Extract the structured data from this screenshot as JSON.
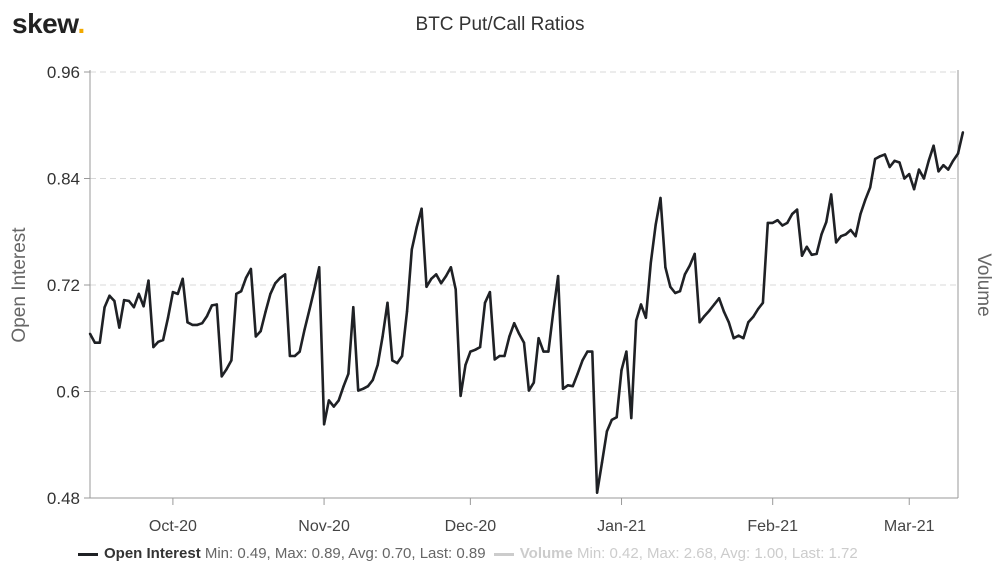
{
  "header": {
    "logo_text": "skew",
    "logo_dot": ".",
    "title": "BTC Put/Call Ratios"
  },
  "colors": {
    "line": "#1f2125",
    "grid": "#d8d8d8",
    "axis": "#999999",
    "logo_dot": "#f2a900",
    "inactive": "#cccccc"
  },
  "legend": [
    {
      "name": "Open Interest",
      "stats": "Min: 0.49, Max: 0.89, Avg: 0.70, Last: 0.89",
      "active": true
    },
    {
      "name": "Volume",
      "stats": "Min: 0.42, Max: 2.68, Avg: 1.00, Last: 1.72",
      "active": false
    }
  ],
  "chart_data": {
    "type": "line",
    "title": "BTC Put/Call Ratios",
    "ylabel": "Open Interest",
    "y2label": "Volume",
    "ylim": [
      0.48,
      0.96
    ],
    "yticks": [
      "0.48",
      "0.6",
      "0.72",
      "0.84",
      "0.96"
    ],
    "xrange": [
      "2020-09-14",
      "2021-03-11"
    ],
    "xticks": [
      {
        "date": "2020-10-01",
        "label": "Oct-20"
      },
      {
        "date": "2020-11-01",
        "label": "Nov-20"
      },
      {
        "date": "2020-12-01",
        "label": "Dec-20"
      },
      {
        "date": "2021-01-01",
        "label": "Jan-21"
      },
      {
        "date": "2021-02-01",
        "label": "Feb-21"
      },
      {
        "date": "2021-03-01",
        "label": "Mar-21"
      }
    ],
    "grid": true,
    "legend_position": "bottom-left",
    "series": [
      {
        "name": "Open Interest",
        "points": [
          [
            "2020-09-14",
            0.665
          ],
          [
            "2020-09-15",
            0.655
          ],
          [
            "2020-09-16",
            0.655
          ],
          [
            "2020-09-17",
            0.695
          ],
          [
            "2020-09-18",
            0.708
          ],
          [
            "2020-09-19",
            0.702
          ],
          [
            "2020-09-20",
            0.672
          ],
          [
            "2020-09-21",
            0.703
          ],
          [
            "2020-09-22",
            0.702
          ],
          [
            "2020-09-23",
            0.695
          ],
          [
            "2020-09-24",
            0.71
          ],
          [
            "2020-09-25",
            0.696
          ],
          [
            "2020-09-26",
            0.725
          ],
          [
            "2020-09-27",
            0.65
          ],
          [
            "2020-09-28",
            0.656
          ],
          [
            "2020-09-29",
            0.658
          ],
          [
            "2020-09-30",
            0.683
          ],
          [
            "2020-10-01",
            0.712
          ],
          [
            "2020-10-02",
            0.71
          ],
          [
            "2020-10-03",
            0.727
          ],
          [
            "2020-10-04",
            0.678
          ],
          [
            "2020-10-05",
            0.675
          ],
          [
            "2020-10-06",
            0.675
          ],
          [
            "2020-10-07",
            0.677
          ],
          [
            "2020-10-08",
            0.685
          ],
          [
            "2020-10-09",
            0.697
          ],
          [
            "2020-10-10",
            0.698
          ],
          [
            "2020-10-11",
            0.617
          ],
          [
            "2020-10-12",
            0.625
          ],
          [
            "2020-10-13",
            0.635
          ],
          [
            "2020-10-14",
            0.71
          ],
          [
            "2020-10-15",
            0.713
          ],
          [
            "2020-10-16",
            0.728
          ],
          [
            "2020-10-17",
            0.738
          ],
          [
            "2020-10-18",
            0.662
          ],
          [
            "2020-10-19",
            0.668
          ],
          [
            "2020-10-20",
            0.69
          ],
          [
            "2020-10-21",
            0.71
          ],
          [
            "2020-10-22",
            0.722
          ],
          [
            "2020-10-23",
            0.728
          ],
          [
            "2020-10-24",
            0.732
          ],
          [
            "2020-10-25",
            0.64
          ],
          [
            "2020-10-26",
            0.64
          ],
          [
            "2020-10-27",
            0.645
          ],
          [
            "2020-10-28",
            0.67
          ],
          [
            "2020-10-29",
            0.692
          ],
          [
            "2020-10-30",
            0.715
          ],
          [
            "2020-10-31",
            0.74
          ],
          [
            "2020-11-01",
            0.563
          ],
          [
            "2020-11-02",
            0.59
          ],
          [
            "2020-11-03",
            0.583
          ],
          [
            "2020-11-04",
            0.59
          ],
          [
            "2020-11-05",
            0.606
          ],
          [
            "2020-11-06",
            0.62
          ],
          [
            "2020-11-07",
            0.695
          ],
          [
            "2020-11-08",
            0.601
          ],
          [
            "2020-11-09",
            0.603
          ],
          [
            "2020-11-10",
            0.606
          ],
          [
            "2020-11-11",
            0.613
          ],
          [
            "2020-11-12",
            0.63
          ],
          [
            "2020-11-13",
            0.662
          ],
          [
            "2020-11-14",
            0.7
          ],
          [
            "2020-11-15",
            0.635
          ],
          [
            "2020-11-16",
            0.632
          ],
          [
            "2020-11-17",
            0.64
          ],
          [
            "2020-11-18",
            0.69
          ],
          [
            "2020-11-19",
            0.76
          ],
          [
            "2020-11-20",
            0.785
          ],
          [
            "2020-11-21",
            0.806
          ],
          [
            "2020-11-22",
            0.718
          ],
          [
            "2020-11-23",
            0.727
          ],
          [
            "2020-11-24",
            0.732
          ],
          [
            "2020-11-25",
            0.722
          ],
          [
            "2020-11-26",
            0.73
          ],
          [
            "2020-11-27",
            0.74
          ],
          [
            "2020-11-28",
            0.715
          ],
          [
            "2020-11-29",
            0.595
          ],
          [
            "2020-11-30",
            0.63
          ],
          [
            "2020-12-01",
            0.645
          ],
          [
            "2020-12-02",
            0.647
          ],
          [
            "2020-12-03",
            0.65
          ],
          [
            "2020-12-04",
            0.7
          ],
          [
            "2020-12-05",
            0.712
          ],
          [
            "2020-12-06",
            0.636
          ],
          [
            "2020-12-07",
            0.64
          ],
          [
            "2020-12-08",
            0.64
          ],
          [
            "2020-12-09",
            0.662
          ],
          [
            "2020-12-10",
            0.677
          ],
          [
            "2020-12-11",
            0.665
          ],
          [
            "2020-12-12",
            0.655
          ],
          [
            "2020-12-13",
            0.601
          ],
          [
            "2020-12-14",
            0.61
          ],
          [
            "2020-12-15",
            0.66
          ],
          [
            "2020-12-16",
            0.645
          ],
          [
            "2020-12-17",
            0.645
          ],
          [
            "2020-12-18",
            0.69
          ],
          [
            "2020-12-19",
            0.73
          ],
          [
            "2020-12-20",
            0.603
          ],
          [
            "2020-12-21",
            0.607
          ],
          [
            "2020-12-22",
            0.606
          ],
          [
            "2020-12-23",
            0.62
          ],
          [
            "2020-12-24",
            0.635
          ],
          [
            "2020-12-25",
            0.645
          ],
          [
            "2020-12-26",
            0.645
          ],
          [
            "2020-12-27",
            0.486
          ],
          [
            "2020-12-28",
            0.52
          ],
          [
            "2020-12-29",
            0.555
          ],
          [
            "2020-12-30",
            0.568
          ],
          [
            "2020-12-31",
            0.571
          ],
          [
            "2021-01-01",
            0.624
          ],
          [
            "2021-01-02",
            0.645
          ],
          [
            "2021-01-03",
            0.57
          ],
          [
            "2021-01-04",
            0.68
          ],
          [
            "2021-01-05",
            0.698
          ],
          [
            "2021-01-06",
            0.683
          ],
          [
            "2021-01-07",
            0.745
          ],
          [
            "2021-01-08",
            0.788
          ],
          [
            "2021-01-09",
            0.818
          ],
          [
            "2021-01-10",
            0.74
          ],
          [
            "2021-01-11",
            0.718
          ],
          [
            "2021-01-12",
            0.711
          ],
          [
            "2021-01-13",
            0.713
          ],
          [
            "2021-01-14",
            0.732
          ],
          [
            "2021-01-15",
            0.742
          ],
          [
            "2021-01-16",
            0.755
          ],
          [
            "2021-01-17",
            0.678
          ],
          [
            "2021-01-18",
            0.685
          ],
          [
            "2021-01-19",
            0.691
          ],
          [
            "2021-01-20",
            0.698
          ],
          [
            "2021-01-21",
            0.705
          ],
          [
            "2021-01-22",
            0.69
          ],
          [
            "2021-01-23",
            0.678
          ],
          [
            "2021-01-24",
            0.66
          ],
          [
            "2021-01-25",
            0.663
          ],
          [
            "2021-01-26",
            0.66
          ],
          [
            "2021-01-27",
            0.678
          ],
          [
            "2021-01-28",
            0.684
          ],
          [
            "2021-01-29",
            0.693
          ],
          [
            "2021-01-30",
            0.7
          ],
          [
            "2021-01-31",
            0.79
          ],
          [
            "2021-02-01",
            0.79
          ],
          [
            "2021-02-02",
            0.793
          ],
          [
            "2021-02-03",
            0.787
          ],
          [
            "2021-02-04",
            0.79
          ],
          [
            "2021-02-05",
            0.8
          ],
          [
            "2021-02-06",
            0.805
          ],
          [
            "2021-02-07",
            0.753
          ],
          [
            "2021-02-08",
            0.763
          ],
          [
            "2021-02-09",
            0.754
          ],
          [
            "2021-02-10",
            0.755
          ],
          [
            "2021-02-11",
            0.777
          ],
          [
            "2021-02-12",
            0.791
          ],
          [
            "2021-02-13",
            0.822
          ],
          [
            "2021-02-14",
            0.768
          ],
          [
            "2021-02-15",
            0.775
          ],
          [
            "2021-02-16",
            0.777
          ],
          [
            "2021-02-17",
            0.782
          ],
          [
            "2021-02-18",
            0.775
          ],
          [
            "2021-02-19",
            0.8
          ],
          [
            "2021-02-20",
            0.816
          ],
          [
            "2021-02-21",
            0.83
          ],
          [
            "2021-02-22",
            0.862
          ],
          [
            "2021-02-23",
            0.865
          ],
          [
            "2021-02-24",
            0.867
          ],
          [
            "2021-02-25",
            0.853
          ],
          [
            "2021-02-26",
            0.86
          ],
          [
            "2021-02-27",
            0.858
          ],
          [
            "2021-02-28",
            0.84
          ],
          [
            "2021-03-01",
            0.845
          ],
          [
            "2021-03-02",
            0.828
          ],
          [
            "2021-03-03",
            0.85
          ],
          [
            "2021-03-04",
            0.84
          ],
          [
            "2021-03-05",
            0.86
          ],
          [
            "2021-03-06",
            0.877
          ],
          [
            "2021-03-07",
            0.848
          ],
          [
            "2021-03-08",
            0.855
          ],
          [
            "2021-03-09",
            0.85
          ],
          [
            "2021-03-10",
            0.86
          ],
          [
            "2021-03-11",
            0.868
          ],
          [
            "2021-03-12",
            0.892
          ]
        ]
      }
    ]
  }
}
